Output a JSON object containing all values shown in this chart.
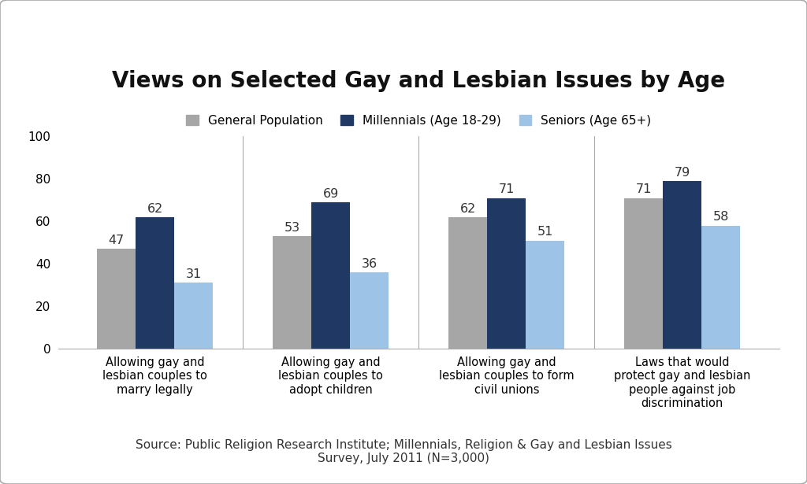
{
  "title": "Views on Selected Gay and Lesbian Issues by Age",
  "categories": [
    "Allowing gay and\nlesbian couples to\nmarry legally",
    "Allowing gay and\nlesbian couples to\nadopt children",
    "Allowing gay and\nlesbian couples to form\ncivil unions",
    "Laws that would\nprotect gay and lesbian\npeople against job\ndiscrimination"
  ],
  "series": {
    "General Population": [
      47,
      53,
      62,
      71
    ],
    "Millennials (Age 18-29)": [
      62,
      69,
      71,
      79
    ],
    "Seniors (Age 65+)": [
      31,
      36,
      51,
      58
    ]
  },
  "colors": {
    "General Population": "#a6a6a6",
    "Millennials (Age 18-29)": "#1f3864",
    "Seniors (Age 65+)": "#9dc3e6"
  },
  "ylim": [
    0,
    100
  ],
  "yticks": [
    0,
    20,
    40,
    60,
    80,
    100
  ],
  "source_text": "Source: Public Religion Research Institute; Millennials, Religion & Gay and Lesbian Issues\nSurvey, July 2011 (N=3,000)",
  "background_color": "#ffffff",
  "bar_width": 0.22,
  "title_fontsize": 20,
  "label_fontsize": 10.5,
  "tick_fontsize": 11,
  "value_fontsize": 11.5,
  "legend_fontsize": 11,
  "source_fontsize": 11,
  "border_color": "#aaaaaa",
  "divider_color": "#aaaaaa"
}
